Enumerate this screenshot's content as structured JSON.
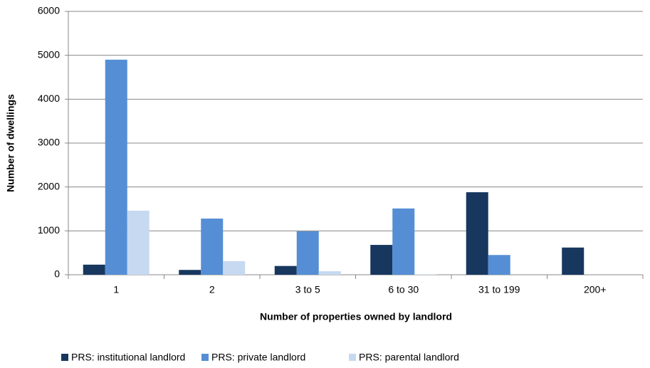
{
  "chart_data": {
    "type": "bar",
    "x_label": "Number of properties owned by landlord",
    "y_label": "Number of dwellings",
    "categories": [
      "1",
      "2",
      "3 to 5",
      "6 to 30",
      "31 to 199",
      "200+"
    ],
    "series": [
      {
        "name": "PRS: institutional landlord",
        "color": "#17375e",
        "values": [
          230,
          110,
          200,
          680,
          1880,
          620
        ]
      },
      {
        "name": "PRS: private landlord",
        "color": "#558ed5",
        "values": [
          4900,
          1280,
          990,
          1510,
          450,
          0
        ]
      },
      {
        "name": "PRS: parental landlord",
        "color": "#c6d9f1",
        "values": [
          1460,
          310,
          80,
          10,
          0,
          0
        ]
      }
    ],
    "ylim": [
      0,
      6000
    ],
    "yticks": [
      0,
      1000,
      2000,
      3000,
      4000,
      5000,
      6000
    ],
    "grid": true
  }
}
